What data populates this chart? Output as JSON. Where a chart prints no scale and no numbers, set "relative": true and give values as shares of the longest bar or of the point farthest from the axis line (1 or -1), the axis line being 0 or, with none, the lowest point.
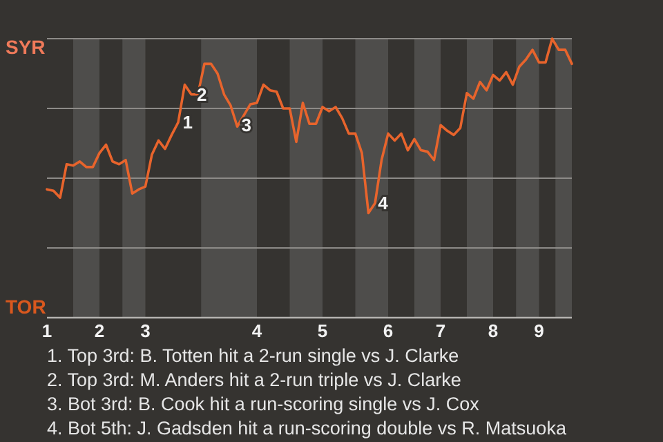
{
  "chart_data": {
    "type": "line",
    "relative": true,
    "categories": [
      "1",
      null,
      null,
      null,
      null,
      null,
      null,
      null,
      "2",
      null,
      null,
      null,
      null,
      null,
      null,
      "3",
      null,
      null,
      null,
      null,
      null,
      null,
      null,
      null,
      null,
      null,
      null,
      null,
      null,
      null,
      null,
      null,
      "4",
      null,
      null,
      null,
      null,
      null,
      null,
      null,
      null,
      null,
      "5",
      null,
      null,
      null,
      null,
      null,
      null,
      null,
      null,
      null,
      "6",
      null,
      null,
      null,
      null,
      null,
      null,
      null,
      "7",
      null,
      null,
      null,
      null,
      null,
      null,
      null,
      "8",
      null,
      null,
      null,
      null,
      null,
      null,
      "9",
      null,
      null,
      null,
      null,
      null
    ],
    "series": [
      {
        "color": "#e8642c",
        "values": [
          0.46,
          0.455,
          0.43,
          0.55,
          0.545,
          0.56,
          0.54,
          0.54,
          0.59,
          0.62,
          0.56,
          0.55,
          0.565,
          0.445,
          0.46,
          0.47,
          0.585,
          0.635,
          0.605,
          0.655,
          0.7,
          0.835,
          0.8,
          0.8,
          0.91,
          0.91,
          0.875,
          0.8,
          0.76,
          0.685,
          0.725,
          0.765,
          0.77,
          0.835,
          0.815,
          0.81,
          0.75,
          0.75,
          0.63,
          0.77,
          0.695,
          0.695,
          0.755,
          0.74,
          0.755,
          0.715,
          0.66,
          0.66,
          0.59,
          0.375,
          0.41,
          0.565,
          0.66,
          0.635,
          0.66,
          0.6,
          0.64,
          0.6,
          0.595,
          0.565,
          0.69,
          0.67,
          0.655,
          0.68,
          0.805,
          0.785,
          0.845,
          0.815,
          0.87,
          0.85,
          0.88,
          0.835,
          0.9,
          0.925,
          0.96,
          0.915,
          0.915,
          1,
          0.96,
          0.96,
          0.91
        ]
      }
    ],
    "grid": "y",
    "annotations": [
      "SYR",
      "TOR",
      "1",
      "2",
      "3",
      "4",
      "1. Top 3rd: B. Totten hit a 2-run single vs J. Clarke",
      "2. Top 3rd: M. Anders hit a 2-run triple vs J. Clarke",
      "3. Bot 3rd: B. Cook hit a run-scoring single vs J. Cox",
      "4. Bot 5th: J. Gadsden hit a run-scoring double vs R. Matsuoka"
    ]
  }
}
